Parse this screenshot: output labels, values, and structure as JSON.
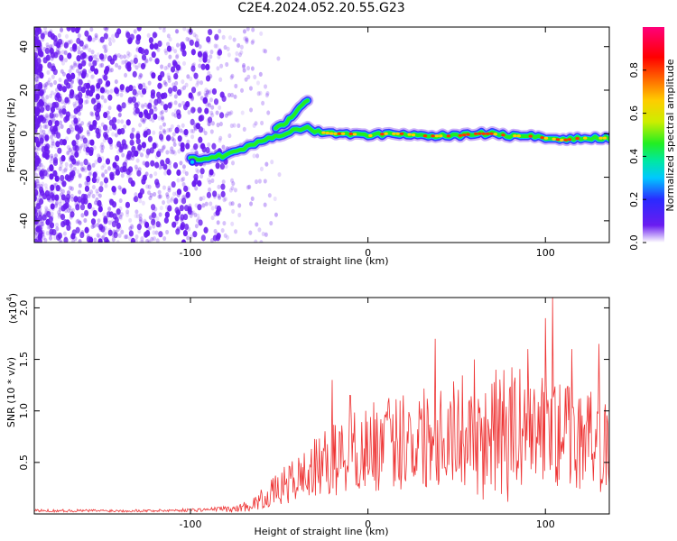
{
  "title": "C2E4.2024.052.20.55.G23",
  "colors": {
    "snr_line": "#ee3333",
    "scatter": "#6a1cf0",
    "colormap": [
      "#ffffff",
      "#6a1cf0",
      "#2a2aff",
      "#00c8ff",
      "#00e8a0",
      "#22ee22",
      "#ccee00",
      "#ffcc00",
      "#ff6600",
      "#ff0000",
      "#ff007a"
    ]
  },
  "chart_data": [
    {
      "type": "heatmap",
      "xlabel": "Height of straight line (km)",
      "ylabel": "Frequency (Hz)",
      "xlim": [
        -188,
        136
      ],
      "ylim": [
        -50,
        49
      ],
      "xticks": [
        {
          "value": -100,
          "label": "-100"
        },
        {
          "value": 0,
          "label": "0"
        },
        {
          "value": 100,
          "label": "100"
        }
      ],
      "yticks": [
        {
          "value": -40,
          "label": "-40"
        },
        {
          "value": -20,
          "label": "-20"
        },
        {
          "value": 0,
          "label": "0"
        },
        {
          "value": 20,
          "label": "20"
        },
        {
          "value": 40,
          "label": "40"
        }
      ],
      "colorbar": {
        "label": "Normalized spectral amplitude",
        "range": [
          0,
          1
        ],
        "ticks": [
          {
            "value": 0.0,
            "label": "0.0"
          },
          {
            "value": 0.2,
            "label": "0.2"
          },
          {
            "value": 0.4,
            "label": "0.4"
          },
          {
            "value": 0.6,
            "label": "0.6"
          },
          {
            "value": 0.8,
            "label": "0.8"
          }
        ]
      },
      "ridge": [
        [
          -100,
          -12
        ],
        [
          -90,
          -11
        ],
        [
          -80,
          -10
        ],
        [
          -72,
          -8
        ],
        [
          -65,
          -5
        ],
        [
          -58,
          -3
        ],
        [
          -50,
          -1
        ],
        [
          -40,
          2
        ],
        [
          -35,
          3
        ],
        [
          -30,
          1
        ],
        [
          -20,
          0
        ],
        [
          -10,
          0
        ],
        [
          0,
          -1
        ],
        [
          10,
          0
        ],
        [
          20,
          0
        ],
        [
          30,
          -1
        ],
        [
          40,
          -1
        ],
        [
          50,
          -1
        ],
        [
          60,
          0
        ],
        [
          70,
          0
        ],
        [
          80,
          -1
        ],
        [
          90,
          -1
        ],
        [
          100,
          -2
        ],
        [
          110,
          -3
        ],
        [
          120,
          -2
        ],
        [
          130,
          -2
        ],
        [
          136,
          -2
        ]
      ],
      "branch": [
        [
          -52,
          2
        ],
        [
          -45,
          6
        ],
        [
          -40,
          10
        ],
        [
          -36,
          14
        ],
        [
          -33,
          15
        ]
      ]
    },
    {
      "type": "line",
      "xlabel": "Height of straight line (km)",
      "ylabel": "SNR (10 * v/v)",
      "y_multiplier_label": "(x10",
      "y_multiplier_exp": "4",
      "xlim": [
        -188,
        136
      ],
      "ylim": [
        0,
        2.1
      ],
      "xticks": [
        {
          "value": -100,
          "label": "-100"
        },
        {
          "value": 0,
          "label": "0"
        },
        {
          "value": 100,
          "label": "100"
        }
      ],
      "yticks": [
        {
          "value": 0.5,
          "label": "0.5"
        },
        {
          "value": 1.0,
          "label": "1.0"
        },
        {
          "value": 1.5,
          "label": "1.5"
        },
        {
          "value": 2.0,
          "label": "2.0"
        }
      ],
      "envelope": [
        [
          -188,
          0.03
        ],
        [
          -120,
          0.03
        ],
        [
          -90,
          0.04
        ],
        [
          -75,
          0.06
        ],
        [
          -65,
          0.12
        ],
        [
          -55,
          0.25
        ],
        [
          -45,
          0.38
        ],
        [
          -35,
          0.5
        ],
        [
          -25,
          0.62
        ],
        [
          -15,
          0.72
        ],
        [
          -5,
          0.8
        ],
        [
          5,
          0.85
        ],
        [
          20,
          0.92
        ],
        [
          40,
          1.02
        ],
        [
          60,
          1.05
        ],
        [
          80,
          1.1
        ],
        [
          100,
          1.05
        ],
        [
          120,
          0.95
        ],
        [
          136,
          0.85
        ]
      ],
      "peaks": [
        [
          -20,
          1.3
        ],
        [
          -10,
          1.15
        ],
        [
          20,
          1.15
        ],
        [
          38,
          1.7
        ],
        [
          60,
          1.5
        ],
        [
          72,
          1.4
        ],
        [
          90,
          1.6
        ],
        [
          100,
          1.9
        ],
        [
          104,
          2.1
        ],
        [
          115,
          1.6
        ],
        [
          130,
          1.65
        ]
      ]
    }
  ]
}
